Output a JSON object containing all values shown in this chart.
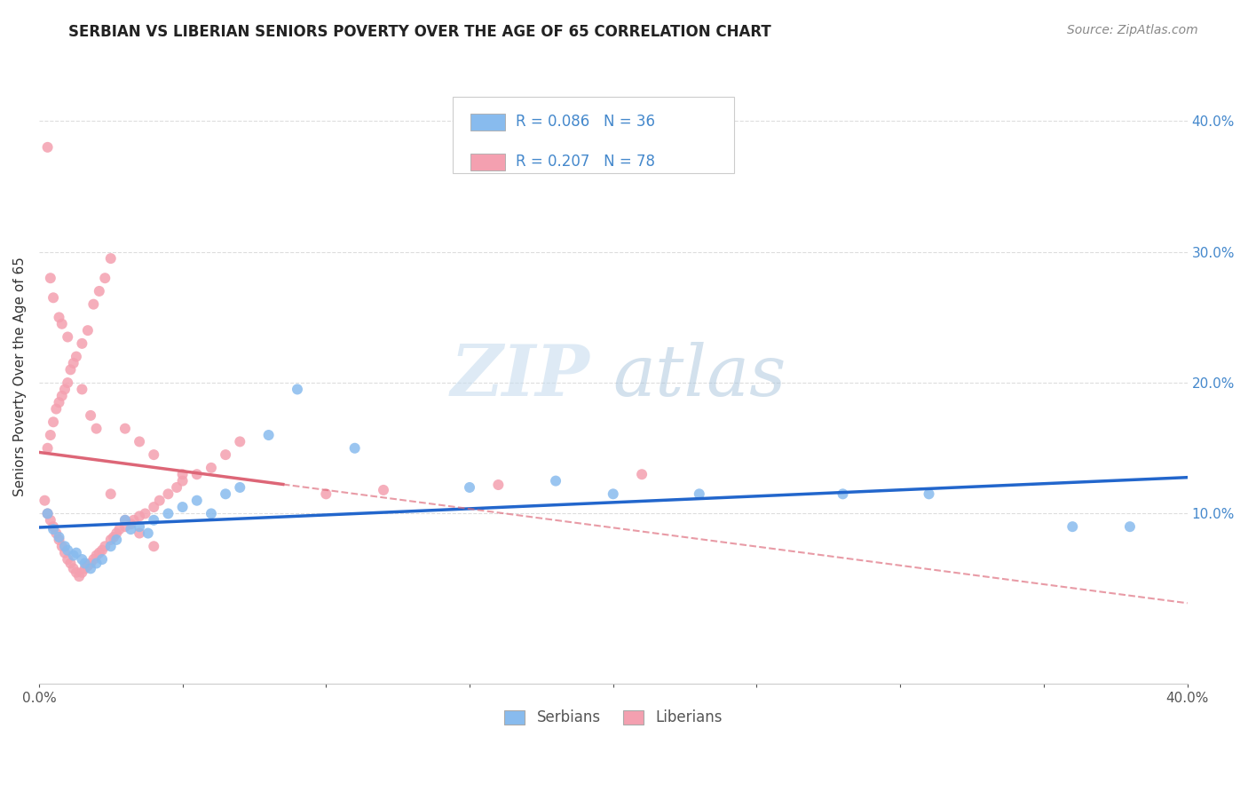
{
  "title": "SERBIAN VS LIBERIAN SENIORS POVERTY OVER THE AGE OF 65 CORRELATION CHART",
  "source_text": "Source: ZipAtlas.com",
  "ylabel": "Seniors Poverty Over the Age of 65",
  "y_ticks_right": [
    0.1,
    0.2,
    0.3,
    0.4
  ],
  "y_tick_labels_right": [
    "10.0%",
    "20.0%",
    "30.0%",
    "40.0%"
  ],
  "xlim": [
    0.0,
    0.4
  ],
  "ylim": [
    -0.03,
    0.44
  ],
  "serbians_R": 0.086,
  "serbians_N": 36,
  "liberians_R": 0.207,
  "liberians_N": 78,
  "serbian_color": "#88BBEE",
  "liberian_color": "#F4A0B0",
  "serbian_line_color": "#2266CC",
  "liberian_line_color": "#DD6677",
  "title_fontsize": 12,
  "source_fontsize": 10,
  "axis_label_fontsize": 11,
  "tick_fontsize": 11,
  "serbian_x": [
    0.003,
    0.005,
    0.007,
    0.009,
    0.01,
    0.012,
    0.013,
    0.015,
    0.016,
    0.018,
    0.02,
    0.022,
    0.025,
    0.027,
    0.03,
    0.032,
    0.035,
    0.038,
    0.04,
    0.045,
    0.05,
    0.055,
    0.06,
    0.065,
    0.07,
    0.08,
    0.09,
    0.11,
    0.15,
    0.18,
    0.2,
    0.23,
    0.28,
    0.31,
    0.36,
    0.38
  ],
  "serbian_y": [
    0.1,
    0.088,
    0.082,
    0.075,
    0.072,
    0.068,
    0.07,
    0.065,
    0.062,
    0.058,
    0.062,
    0.065,
    0.075,
    0.08,
    0.095,
    0.088,
    0.09,
    0.085,
    0.095,
    0.1,
    0.105,
    0.11,
    0.1,
    0.115,
    0.12,
    0.16,
    0.195,
    0.15,
    0.12,
    0.125,
    0.115,
    0.115,
    0.115,
    0.115,
    0.09,
    0.09
  ],
  "liberian_x": [
    0.002,
    0.003,
    0.004,
    0.005,
    0.006,
    0.007,
    0.008,
    0.009,
    0.01,
    0.011,
    0.012,
    0.013,
    0.014,
    0.015,
    0.016,
    0.017,
    0.018,
    0.019,
    0.02,
    0.021,
    0.022,
    0.023,
    0.025,
    0.026,
    0.027,
    0.028,
    0.03,
    0.032,
    0.033,
    0.035,
    0.037,
    0.04,
    0.042,
    0.045,
    0.048,
    0.05,
    0.055,
    0.06,
    0.065,
    0.07,
    0.003,
    0.004,
    0.005,
    0.006,
    0.007,
    0.008,
    0.009,
    0.01,
    0.011,
    0.013,
    0.015,
    0.017,
    0.019,
    0.021,
    0.023,
    0.025,
    0.03,
    0.035,
    0.04,
    0.05,
    0.003,
    0.004,
    0.005,
    0.007,
    0.008,
    0.01,
    0.012,
    0.015,
    0.018,
    0.02,
    0.025,
    0.03,
    0.035,
    0.04,
    0.1,
    0.12,
    0.16,
    0.21
  ],
  "liberian_y": [
    0.11,
    0.1,
    0.095,
    0.09,
    0.085,
    0.08,
    0.075,
    0.07,
    0.065,
    0.062,
    0.058,
    0.055,
    0.052,
    0.055,
    0.058,
    0.06,
    0.062,
    0.065,
    0.068,
    0.07,
    0.072,
    0.075,
    0.08,
    0.082,
    0.085,
    0.088,
    0.09,
    0.092,
    0.095,
    0.098,
    0.1,
    0.105,
    0.11,
    0.115,
    0.12,
    0.125,
    0.13,
    0.135,
    0.145,
    0.155,
    0.15,
    0.16,
    0.17,
    0.18,
    0.185,
    0.19,
    0.195,
    0.2,
    0.21,
    0.22,
    0.23,
    0.24,
    0.26,
    0.27,
    0.28,
    0.295,
    0.165,
    0.155,
    0.145,
    0.13,
    0.38,
    0.28,
    0.265,
    0.25,
    0.245,
    0.235,
    0.215,
    0.195,
    0.175,
    0.165,
    0.115,
    0.095,
    0.085,
    0.075,
    0.115,
    0.118,
    0.122,
    0.13
  ]
}
